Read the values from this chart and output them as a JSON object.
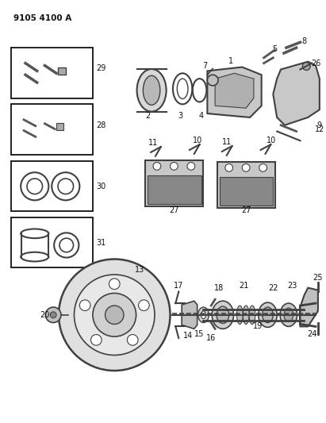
{
  "title": "9105 4100 A",
  "bg_color": "#ffffff",
  "line_color": "#404040",
  "text_color": "#111111",
  "box_color": "#111111",
  "fig_width": 4.11,
  "fig_height": 5.33,
  "dpi": 100
}
